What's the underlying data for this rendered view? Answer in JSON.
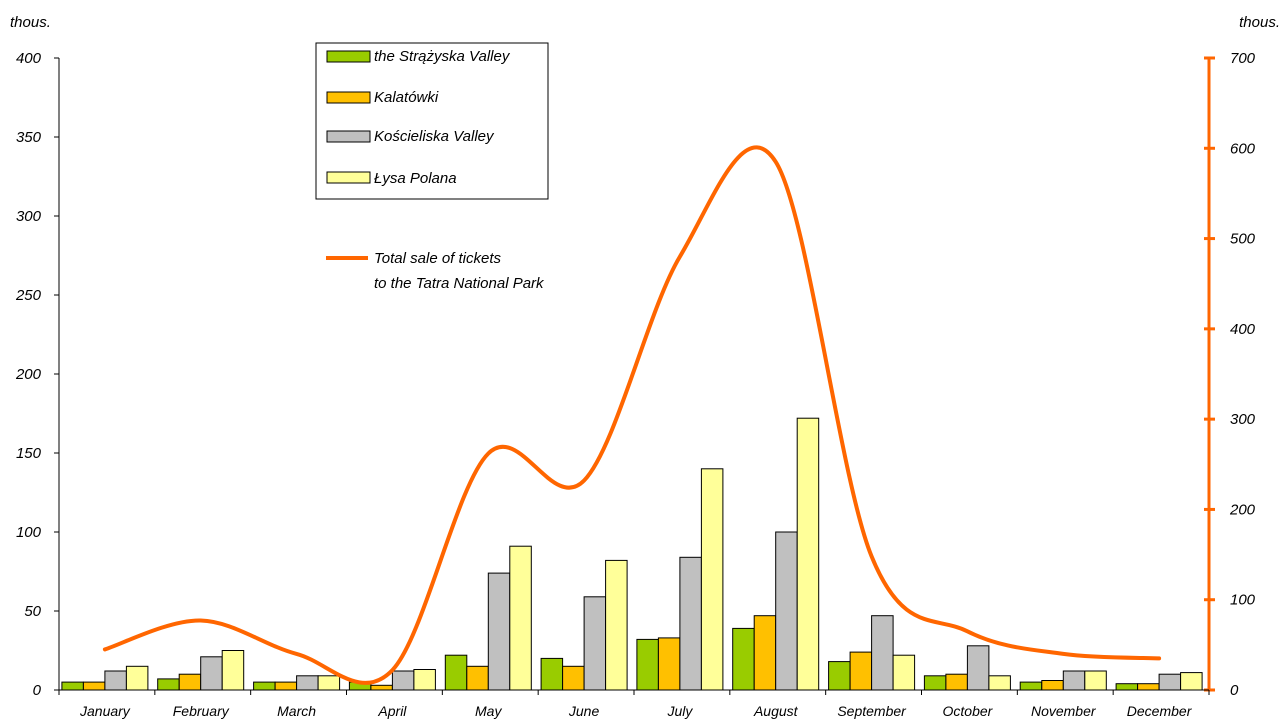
{
  "chart_data": {
    "type": "bar",
    "left_unit": "thous.",
    "right_unit": "thous.",
    "categories": [
      "January",
      "February",
      "March",
      "April",
      "May",
      "June",
      "July",
      "August",
      "September",
      "October",
      "November",
      "December"
    ],
    "ylim_left": [
      0,
      400
    ],
    "yticks_left": [
      0,
      50,
      100,
      150,
      200,
      250,
      300,
      350,
      400
    ],
    "ylim_right": [
      0,
      700
    ],
    "yticks_right": [
      0,
      100,
      200,
      300,
      400,
      500,
      600,
      700
    ],
    "series": [
      {
        "name": "the Strążyska Valley",
        "color": "#99cc00",
        "axis": "left",
        "values": [
          5,
          7,
          5,
          5,
          22,
          20,
          32,
          39,
          18,
          9,
          5,
          4
        ]
      },
      {
        "name": "Kalatówki",
        "color": "#ffc000",
        "axis": "left",
        "values": [
          5,
          10,
          5,
          3,
          15,
          15,
          33,
          47,
          24,
          10,
          6,
          4
        ]
      },
      {
        "name": "Kościeliska Valley",
        "color": "#c0c0c0",
        "axis": "left",
        "values": [
          12,
          21,
          9,
          12,
          74,
          59,
          84,
          100,
          47,
          28,
          12,
          10
        ]
      },
      {
        "name": "Łysa Polana",
        "color": "#ffff99",
        "axis": "left",
        "values": [
          15,
          25,
          9,
          13,
          91,
          82,
          140,
          172,
          22,
          9,
          12,
          11
        ]
      }
    ],
    "line_series": {
      "name": "Total sale of tickets",
      "name_line2": "to the Tatra National Park",
      "color": "#ff6600",
      "axis": "right",
      "values": [
        45,
        77,
        40,
        22,
        262,
        232,
        480,
        585,
        148,
        65,
        40,
        35
      ]
    },
    "legend_position": "top-center",
    "grid": false
  }
}
